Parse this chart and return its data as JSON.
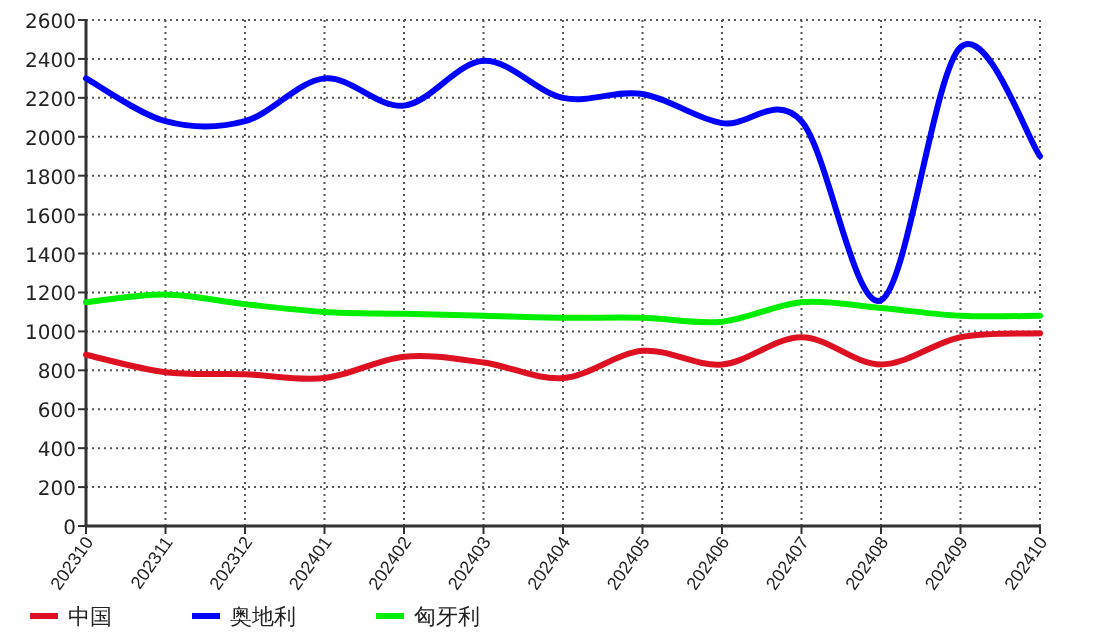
{
  "chart_data": {
    "type": "line",
    "categories": [
      "202310",
      "202311",
      "202312",
      "202401",
      "202402",
      "202403",
      "202404",
      "202405",
      "202406",
      "202407",
      "202408",
      "202409",
      "202410"
    ],
    "series": [
      {
        "name": "中国",
        "color": "#dd1122",
        "values": [
          880,
          790,
          780,
          760,
          870,
          840,
          760,
          900,
          830,
          970,
          830,
          970,
          990
        ]
      },
      {
        "name": "奥地利",
        "color": "#0000ff",
        "values": [
          2300,
          2080,
          2080,
          2300,
          2160,
          2390,
          2200,
          2220,
          2070,
          2080,
          1160,
          2460,
          1900
        ]
      },
      {
        "name": "匈牙利",
        "color": "#00ee00",
        "values": [
          1150,
          1190,
          1140,
          1100,
          1090,
          1080,
          1070,
          1070,
          1050,
          1150,
          1120,
          1080,
          1080
        ]
      }
    ],
    "ylim": [
      0,
      2600
    ],
    "yticks": [
      0,
      200,
      400,
      600,
      800,
      1000,
      1200,
      1400,
      1600,
      1800,
      2000,
      2200,
      2400,
      2600
    ],
    "grid": true,
    "legend": "bottom",
    "marker": "none",
    "line_style": "solid"
  }
}
